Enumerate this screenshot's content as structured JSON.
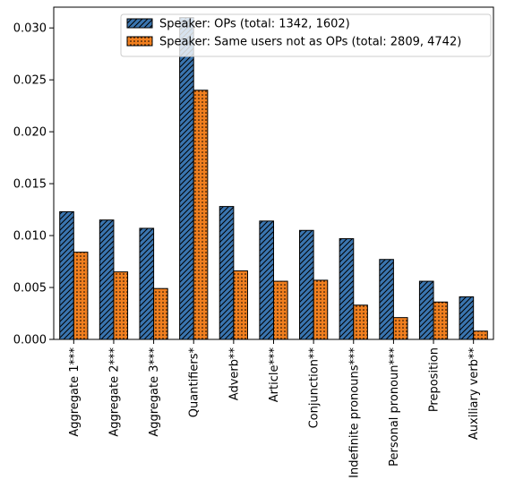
{
  "chart_data": {
    "type": "bar",
    "categories": [
      "Aggregate 1***",
      "Aggregate 2***",
      "Aggregate 3***",
      "Quantifiers*",
      "Adverb**",
      "Article***",
      "Conjunction**",
      "Indefinite pronouns***",
      "Personal pronoun***",
      "Preposition",
      "Auxiliary verb**"
    ],
    "series": [
      {
        "name": "Speaker: OPs (total: 1342, 1602)",
        "color": "#3a75b0",
        "pattern": "diagonal-hatch",
        "values": [
          0.0123,
          0.0115,
          0.0107,
          0.031,
          0.0128,
          0.0114,
          0.0105,
          0.0097,
          0.0077,
          0.0056,
          0.0041
        ]
      },
      {
        "name": "Speaker: Same users not as OPs (total: 2809, 4742)",
        "color": "#f07f1f",
        "pattern": "dots",
        "values": [
          0.0084,
          0.0065,
          0.0049,
          0.024,
          0.0066,
          0.0056,
          0.0057,
          0.0033,
          0.0021,
          0.0036,
          0.0008
        ]
      }
    ],
    "title": "",
    "xlabel": "",
    "ylabel": "",
    "ylim": [
      0,
      0.032
    ],
    "yticks": [
      "0.000",
      "0.005",
      "0.010",
      "0.015",
      "0.020",
      "0.025",
      "0.030"
    ],
    "legend_position": "top-right",
    "grid": false
  }
}
